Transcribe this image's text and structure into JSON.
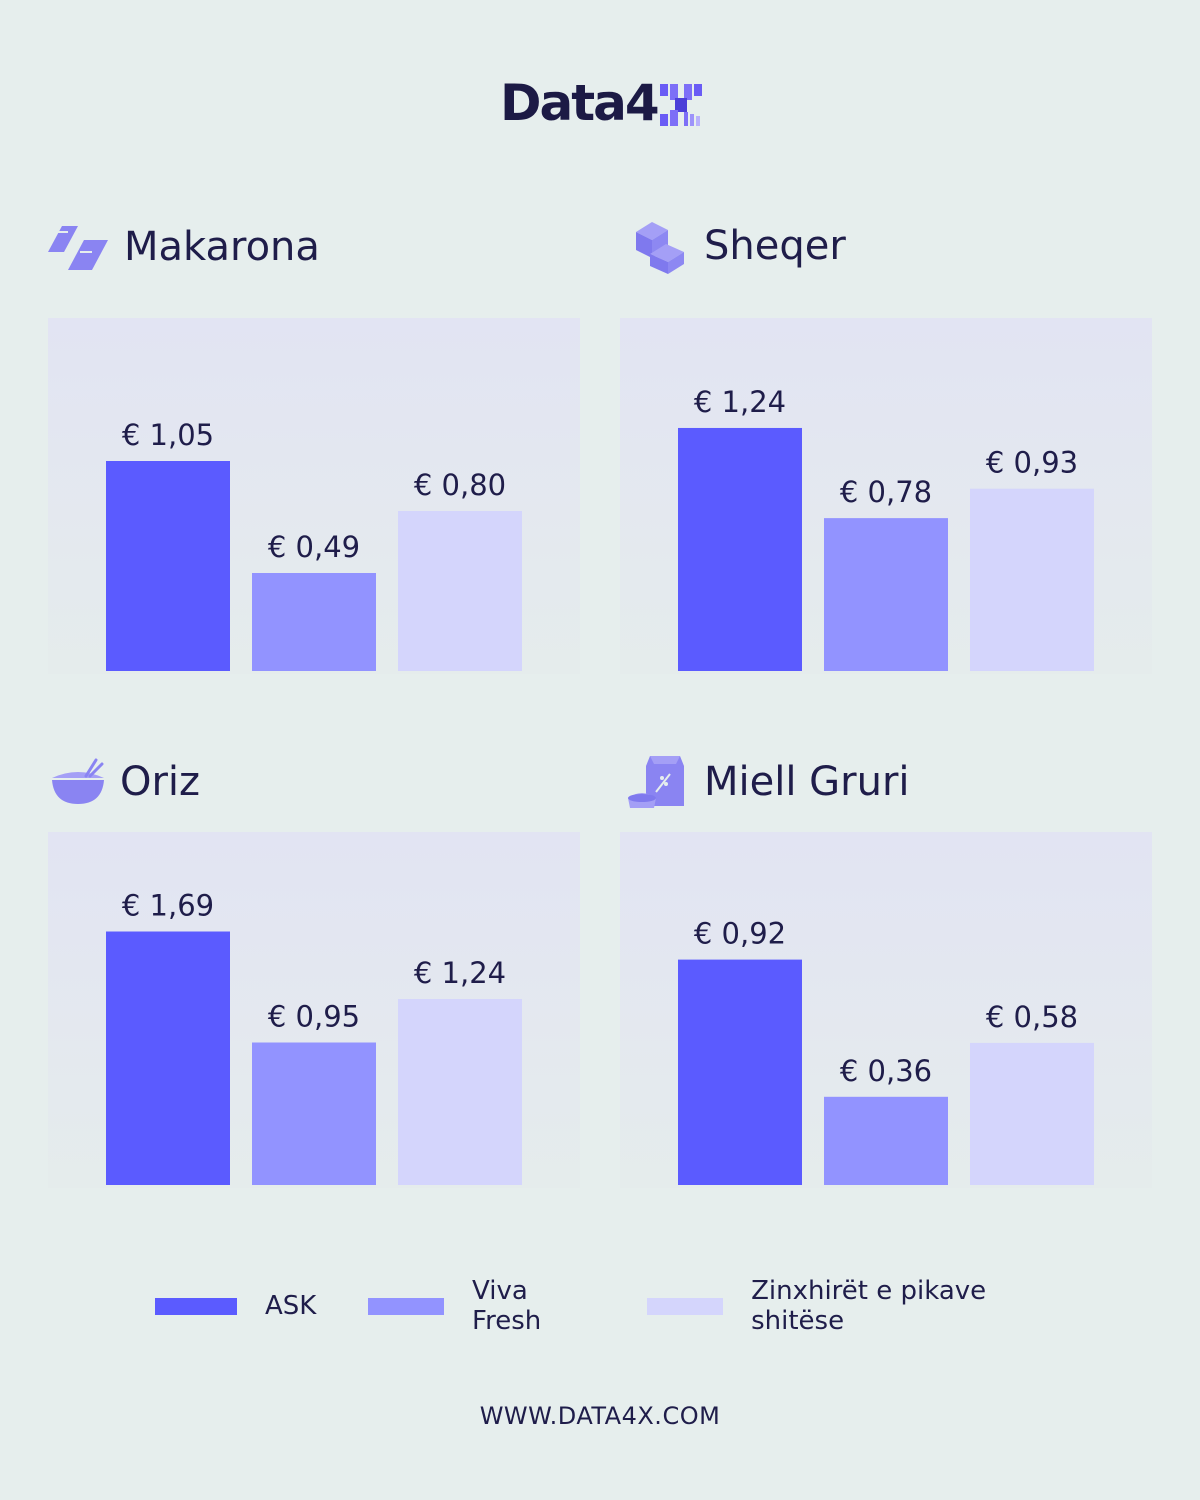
{
  "brand": {
    "logo_text": "Data4"
  },
  "colors": {
    "ask": "#5b5bff",
    "viva": "#9293ff",
    "zinx": "#d4d5fc",
    "text": "#1f1d4a",
    "icon": "#8a84f2"
  },
  "chart_data": [
    {
      "type": "bar",
      "title": "Makarona",
      "icon": "pasta-icon",
      "categories": [
        "ASK",
        "Viva Fresh",
        "Zinxhirët e pikave shitëse"
      ],
      "values": [
        1.05,
        0.49,
        0.8
      ],
      "labels": [
        "€ 1,05",
        "€ 0,49",
        "€ 0,80"
      ]
    },
    {
      "type": "bar",
      "title": "Sheqer",
      "icon": "sugar-cubes-icon",
      "categories": [
        "ASK",
        "Viva Fresh",
        "Zinxhirët e pikave shitëse"
      ],
      "values": [
        1.24,
        0.78,
        0.93
      ],
      "labels": [
        "€ 1,24",
        "€ 0,78",
        "€ 0,93"
      ]
    },
    {
      "type": "bar",
      "title": "Oriz",
      "icon": "rice-bowl-icon",
      "categories": [
        "ASK",
        "Viva Fresh",
        "Zinxhirët e pikave shitëse"
      ],
      "values": [
        1.69,
        0.95,
        1.24
      ],
      "labels": [
        "€ 1,69",
        "€ 0,95",
        "€ 1,24"
      ]
    },
    {
      "type": "bar",
      "title": "Miell Gruri",
      "icon": "flour-bag-icon",
      "categories": [
        "ASK",
        "Viva Fresh",
        "Zinxhirët e pikave shitëse"
      ],
      "values": [
        0.92,
        0.36,
        0.58
      ],
      "labels": [
        "€ 0,92",
        "€ 0,36",
        "€ 0,58"
      ]
    }
  ],
  "legend": [
    {
      "label": "ASK"
    },
    {
      "label": "Viva Fresh"
    },
    {
      "label": "Zinxhirët e pikave shitëse"
    }
  ],
  "footer": {
    "url": "WWW.DATA4X.COM"
  }
}
